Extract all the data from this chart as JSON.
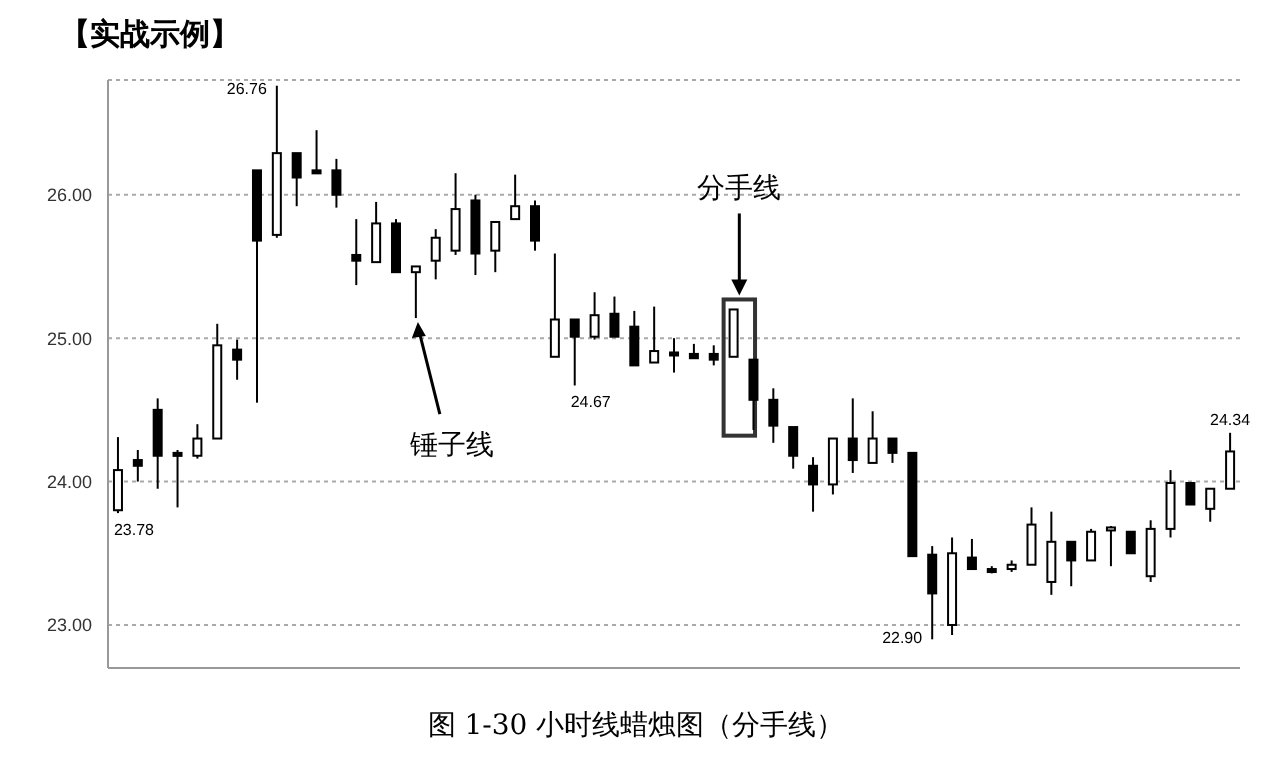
{
  "chart_data": {
    "type": "candlestick",
    "title": "【实战示例】",
    "categories": [
      null,
      null,
      null,
      null,
      null,
      null,
      null,
      null,
      null,
      null,
      null,
      null,
      null,
      null,
      null,
      null,
      null,
      null,
      null,
      null,
      null,
      null,
      null,
      null,
      null,
      null,
      null,
      null,
      null,
      null,
      null,
      null,
      null,
      null,
      null,
      null,
      null,
      null,
      null,
      null,
      null,
      null,
      null,
      null,
      null,
      null,
      null,
      null,
      null,
      null,
      null,
      null,
      null,
      null,
      null,
      null,
      null
    ],
    "ohlc": [
      [
        23.8,
        24.31,
        23.78,
        24.08
      ],
      [
        24.15,
        24.22,
        24.0,
        24.11
      ],
      [
        24.5,
        24.58,
        23.95,
        24.18
      ],
      [
        24.2,
        24.22,
        23.82,
        24.18
      ],
      [
        24.18,
        24.4,
        24.16,
        24.3
      ],
      [
        24.3,
        25.1,
        24.3,
        24.95
      ],
      [
        24.92,
        24.99,
        24.71,
        24.85
      ],
      [
        26.17,
        26.17,
        24.55,
        25.68
      ],
      [
        25.72,
        26.76,
        25.7,
        26.29
      ],
      [
        26.29,
        26.29,
        25.92,
        26.12
      ],
      [
        26.17,
        26.45,
        26.15,
        26.16
      ],
      [
        26.17,
        26.25,
        25.91,
        26.0
      ],
      [
        25.58,
        25.83,
        25.37,
        25.54
      ],
      [
        25.53,
        25.95,
        25.53,
        25.8
      ],
      [
        25.8,
        25.83,
        25.46,
        25.46
      ],
      [
        25.46,
        25.5,
        25.14,
        25.5
      ],
      [
        25.54,
        25.76,
        25.41,
        25.7
      ],
      [
        25.61,
        26.15,
        25.58,
        25.9
      ],
      [
        25.96,
        26.0,
        25.44,
        25.59
      ],
      [
        25.61,
        25.81,
        25.46,
        25.81
      ],
      [
        25.83,
        26.14,
        25.83,
        25.92
      ],
      [
        25.92,
        25.96,
        25.61,
        25.68
      ],
      [
        24.87,
        25.59,
        24.87,
        25.13
      ],
      [
        25.13,
        25.13,
        24.67,
        25.01
      ],
      [
        25.01,
        25.32,
        24.99,
        25.16
      ],
      [
        25.17,
        25.29,
        25.01,
        25.01
      ],
      [
        25.08,
        25.19,
        24.81,
        24.81
      ],
      [
        24.83,
        25.22,
        24.83,
        24.91
      ],
      [
        24.9,
        25.0,
        24.76,
        24.89
      ],
      [
        24.89,
        24.96,
        24.86,
        24.86
      ],
      [
        24.89,
        24.95,
        24.81,
        24.85
      ],
      [
        24.87,
        25.2,
        24.87,
        25.2
      ],
      [
        24.85,
        24.85,
        24.36,
        24.57
      ],
      [
        24.57,
        24.65,
        24.27,
        24.39
      ],
      [
        24.38,
        24.38,
        24.09,
        24.18
      ],
      [
        24.11,
        24.17,
        23.79,
        23.98
      ],
      [
        23.98,
        24.3,
        23.91,
        24.3
      ],
      [
        24.3,
        24.58,
        24.06,
        24.15
      ],
      [
        24.13,
        24.49,
        24.13,
        24.3
      ],
      [
        24.3,
        24.3,
        24.13,
        24.2
      ],
      [
        24.2,
        24.2,
        23.48,
        23.48
      ],
      [
        23.49,
        23.55,
        22.9,
        23.22
      ],
      [
        23.0,
        23.61,
        22.93,
        23.5
      ],
      [
        23.47,
        23.6,
        23.39,
        23.39
      ],
      [
        23.39,
        23.41,
        23.36,
        23.38
      ],
      [
        23.39,
        23.45,
        23.37,
        23.42
      ],
      [
        23.42,
        23.82,
        23.42,
        23.7
      ],
      [
        23.3,
        23.79,
        23.21,
        23.58
      ],
      [
        23.58,
        23.58,
        23.27,
        23.45
      ],
      [
        23.45,
        23.67,
        23.45,
        23.65
      ],
      [
        23.66,
        23.69,
        23.41,
        23.68
      ],
      [
        23.65,
        23.65,
        23.5,
        23.5
      ],
      [
        23.34,
        23.73,
        23.3,
        23.67
      ],
      [
        23.67,
        24.08,
        23.61,
        23.99
      ],
      [
        23.99,
        23.99,
        23.84,
        23.84
      ],
      [
        23.81,
        23.95,
        23.72,
        23.95
      ],
      [
        23.95,
        24.34,
        23.95,
        24.21
      ]
    ],
    "ylim": [
      22.7,
      26.8
    ],
    "yticks": [
      {
        "value": 23,
        "label": "23.00"
      },
      {
        "value": 24,
        "label": "24.00"
      },
      {
        "value": 25,
        "label": "25.00"
      },
      {
        "value": 26,
        "label": "26.00"
      }
    ],
    "grid": "y",
    "annotations": [
      "锤子线",
      "分手线",
      "图 1-30 小时线蜡烛图（分手线）",
      "26.76",
      "23.78",
      "24.67",
      "22.90",
      "24.34"
    ]
  }
}
